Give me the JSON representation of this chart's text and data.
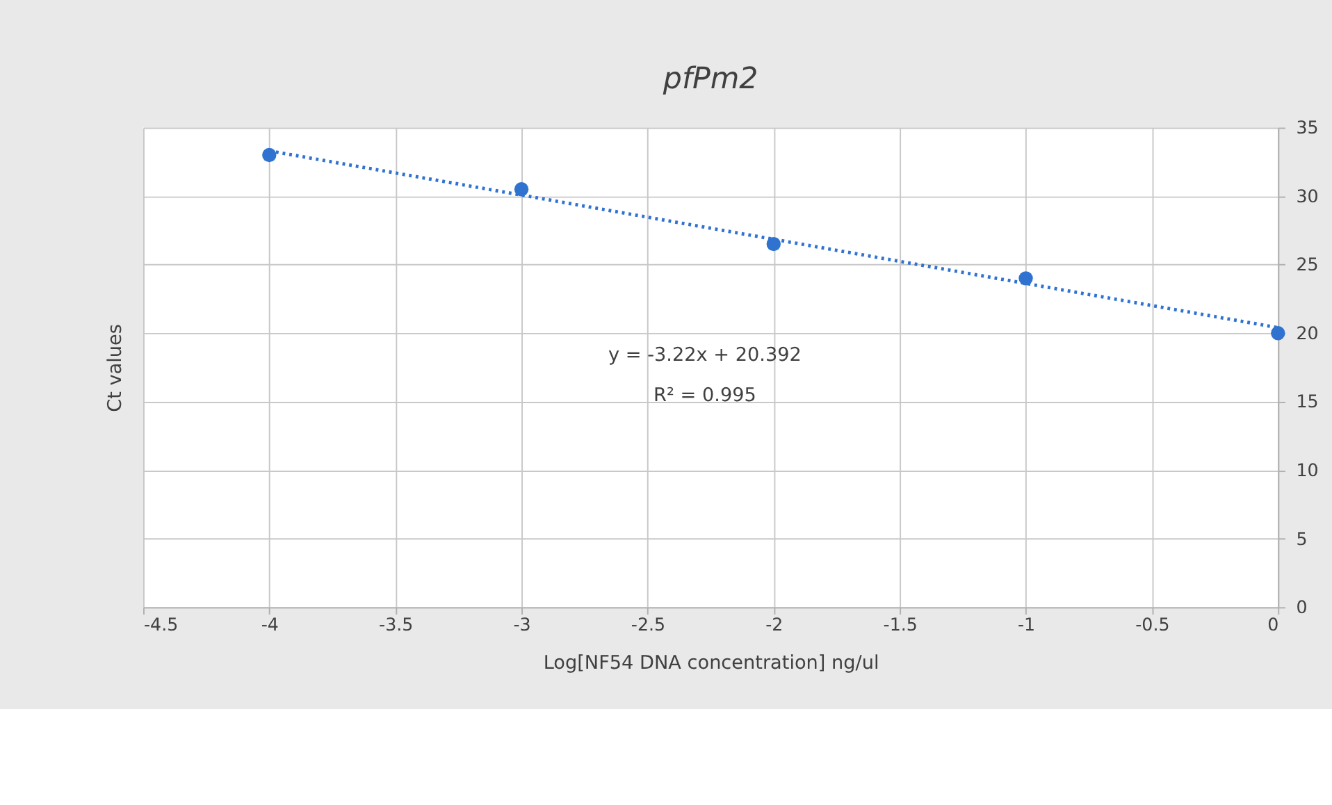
{
  "chart_data": {
    "type": "scatter",
    "title": "pfPm2",
    "xlabel": "Log[NF54 DNA concentration] ng/ul",
    "ylabel": "Ct values",
    "x": [
      -4,
      -3,
      -2,
      -1,
      0
    ],
    "series": [
      {
        "color": "#2f72d0",
        "values": [
          33,
          30.5,
          26.5,
          24,
          20
        ],
        "marker": "circle"
      },
      {
        "type": "line",
        "color": "#2f72d0",
        "x": [
          -4,
          0
        ],
        "values": [
          33.3,
          20.4
        ],
        "line_style": "dotted",
        "marker": "none"
      }
    ],
    "annotations": [
      "y = -3.22x + 20.392",
      "R² = 0.995"
    ],
    "xlim": [
      -4.5,
      0
    ],
    "xticks": [
      -4.5,
      -4,
      -3.5,
      -3,
      -2.5,
      -2,
      -1.5,
      -1,
      -0.5,
      0
    ],
    "ylim": [
      0,
      35
    ],
    "yticks": [
      0,
      5,
      10,
      15,
      20,
      25,
      30,
      35
    ],
    "grid": true
  }
}
